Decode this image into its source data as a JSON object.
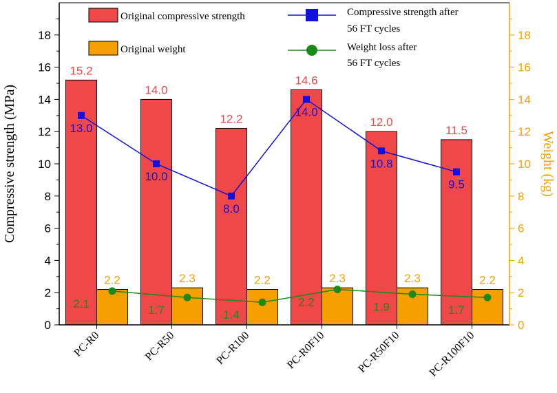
{
  "chart_data": {
    "type": "bar",
    "categories": [
      "PC-R0",
      "PC-R50",
      "PC-R100",
      "PC-R0F10",
      "PC-R50F10",
      "PC-R100F10"
    ],
    "series": [
      {
        "name": "Original compressive strength",
        "kind": "bar",
        "axis": "left",
        "color": "#f04848",
        "values": [
          15.2,
          14.0,
          12.2,
          14.6,
          12.0,
          11.5
        ],
        "labels": [
          "15.2",
          "14.0",
          "12.2",
          "14.6",
          "12.0",
          "11.5"
        ]
      },
      {
        "name": "Original weight",
        "kind": "bar",
        "axis": "right",
        "color": "#f5a000",
        "values": [
          2.2,
          2.3,
          2.2,
          2.3,
          2.3,
          2.2
        ],
        "labels": [
          "2.2",
          "2.3",
          "2.2",
          "2.3",
          "2.3",
          "2.2"
        ]
      },
      {
        "name": "Compressive strength after 56 FT cycles",
        "kind": "line",
        "marker": "square",
        "axis": "left",
        "color": "#1010e0",
        "values": [
          13.0,
          10.0,
          8.0,
          14.0,
          10.8,
          9.5
        ],
        "labels": [
          "13.0",
          "10.0",
          "8.0",
          "14.0",
          "10.8",
          "9.5"
        ]
      },
      {
        "name": "Weight loss after 56 FT cycles",
        "kind": "line",
        "marker": "circle",
        "axis": "right",
        "color": "#1a8a1a",
        "values": [
          2.1,
          1.7,
          1.4,
          2.2,
          1.9,
          1.7
        ],
        "labels": [
          "2.1",
          "1.7",
          "1.4",
          "2.2",
          "1.9",
          "1.7"
        ]
      }
    ],
    "legend": [
      {
        "lines": [
          "Original compressive strength"
        ]
      },
      {
        "lines": [
          "Compressive strength after",
          "56 FT cycles"
        ]
      },
      {
        "lines": [
          "Original weight"
        ]
      },
      {
        "lines": [
          "Weight loss after",
          "56 FT cycles"
        ]
      }
    ],
    "ylabel": "Compressive strength (MPa)",
    "y2label": "Weight (kg)",
    "ylim": [
      0,
      20
    ],
    "y2lim": [
      0,
      20
    ],
    "yticks": [
      0,
      2,
      4,
      6,
      8,
      10,
      12,
      14,
      16,
      18
    ],
    "y2ticks": [
      0,
      2,
      4,
      6,
      8,
      10,
      12,
      14,
      16,
      18
    ],
    "right_axis_color": "#f5a000"
  }
}
